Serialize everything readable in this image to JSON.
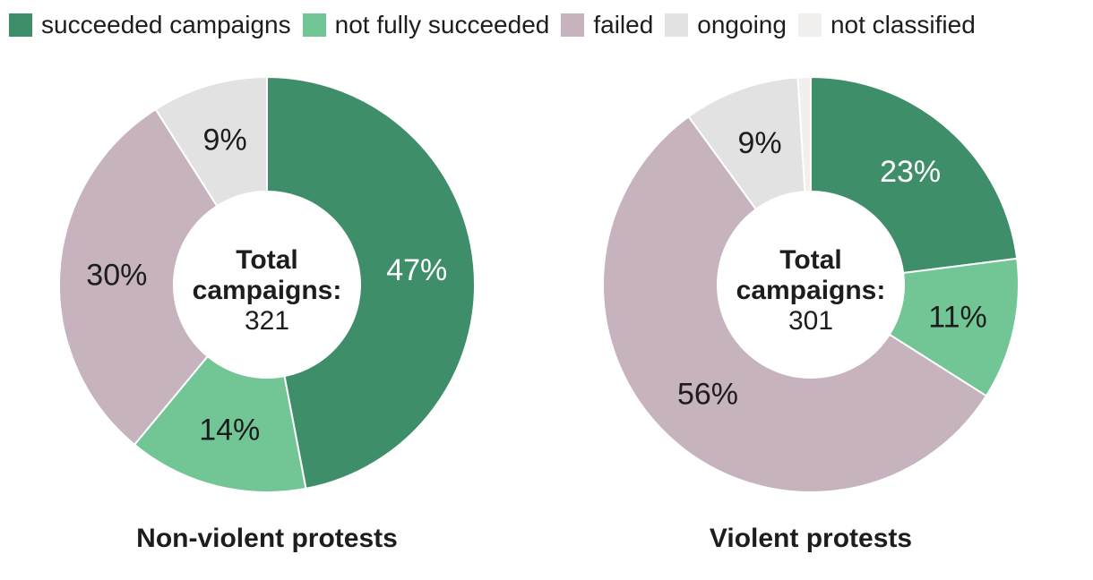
{
  "page": {
    "background": "#ffffff",
    "text_color": "#1d1d1d"
  },
  "legend": {
    "items": [
      {
        "label": "succeeded campaigns",
        "color": "#3f8e6a"
      },
      {
        "label": "not fully succeeded",
        "color": "#72c696"
      },
      {
        "label": "failed",
        "color": "#c6b3be"
      },
      {
        "label": "ongoing",
        "color": "#e3e2e2"
      },
      {
        "label": "not classified",
        "color": "#f1f0ef"
      }
    ]
  },
  "chart_data": [
    {
      "type": "pie",
      "subtype": "donut",
      "title": "Non-violent protests",
      "center_label": {
        "line1": "Total",
        "line2": "campaigns:",
        "value": "321"
      },
      "total_campaigns": 321,
      "categories": [
        "succeeded campaigns",
        "not fully succeeded",
        "failed",
        "ongoing",
        "not classified"
      ],
      "values_percent": [
        47,
        14,
        30,
        9,
        0
      ],
      "slice_labels": [
        "47%",
        "14%",
        "30%",
        "9%",
        ""
      ],
      "colors": [
        "#3f8e6a",
        "#72c696",
        "#c6b3be",
        "#e3e2e2",
        "#f1f0ef"
      ],
      "label_colors": [
        "#ffffff",
        "#1d1d1d",
        "#1d1d1d",
        "#1d1d1d",
        ""
      ],
      "start_angle_deg": 0,
      "direction": "clockwise",
      "hole_ratio": 0.45,
      "legend_position": "top"
    },
    {
      "type": "pie",
      "subtype": "donut",
      "title": "Violent protests",
      "center_label": {
        "line1": "Total",
        "line2": "campaigns:",
        "value": "301"
      },
      "total_campaigns": 301,
      "categories": [
        "succeeded campaigns",
        "not fully succeeded",
        "failed",
        "ongoing",
        "not classified"
      ],
      "values_percent": [
        23,
        11,
        56,
        9,
        1
      ],
      "slice_labels": [
        "23%",
        "11%",
        "56%",
        "9%",
        ""
      ],
      "colors": [
        "#3f8e6a",
        "#72c696",
        "#c6b3be",
        "#e3e2e2",
        "#f1f0ef"
      ],
      "label_colors": [
        "#ffffff",
        "#1d1d1d",
        "#1d1d1d",
        "#1d1d1d",
        ""
      ],
      "start_angle_deg": 0,
      "direction": "clockwise",
      "hole_ratio": 0.45,
      "legend_position": "top"
    }
  ]
}
